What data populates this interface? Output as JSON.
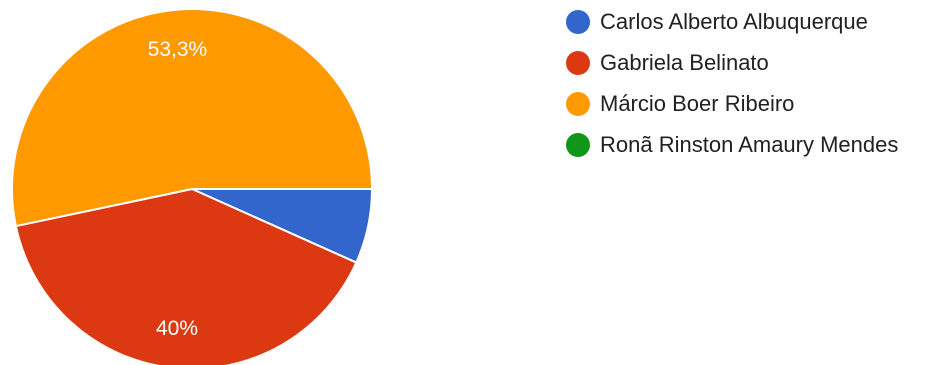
{
  "chart_data": {
    "type": "pie",
    "title": "",
    "legend_position": "right",
    "slices": [
      {
        "name": "Carlos Alberto Albuquerque",
        "value": 6.7,
        "color": "#3366cc",
        "label": ""
      },
      {
        "name": "Gabriela Belinato",
        "value": 40.0,
        "color": "#dc3912",
        "label": "40%"
      },
      {
        "name": "Márcio Boer Ribeiro",
        "value": 53.3,
        "color": "#ff9900",
        "label": "53,3%"
      },
      {
        "name": "Ronã Rinston Amaury Mendes",
        "value": 0.0,
        "color": "#109618",
        "label": ""
      }
    ]
  }
}
